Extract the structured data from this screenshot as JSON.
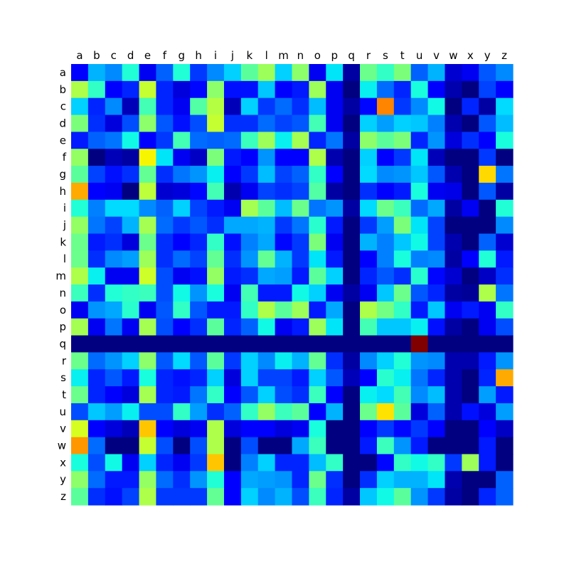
{
  "chart_data": {
    "type": "heatmap",
    "colormap": "jet",
    "vmin": 0,
    "vmax": 1,
    "x_ticks": [
      "a",
      "b",
      "c",
      "d",
      "e",
      "f",
      "g",
      "h",
      "i",
      "j",
      "k",
      "l",
      "m",
      "n",
      "o",
      "p",
      "q",
      "r",
      "s",
      "t",
      "u",
      "v",
      "w",
      "x",
      "y",
      "z"
    ],
    "y_ticks": [
      "a",
      "b",
      "c",
      "d",
      "e",
      "f",
      "g",
      "h",
      "i",
      "j",
      "k",
      "l",
      "m",
      "n",
      "o",
      "p",
      "q",
      "r",
      "s",
      "t",
      "u",
      "v",
      "w",
      "x",
      "y",
      "z"
    ],
    "x_axis_position": "top",
    "grid": false,
    "values": [
      [
        0.11,
        0.3,
        0.26,
        0.39,
        0.1,
        0.22,
        0.39,
        0.18,
        0.26,
        0.33,
        0.46,
        0.54,
        0.33,
        0.52,
        0.1,
        0.35,
        0.03,
        0.48,
        0.41,
        0.5,
        0.22,
        0.3,
        0.07,
        0.1,
        0.21,
        0.26
      ],
      [
        0.56,
        0.41,
        0.11,
        0.16,
        0.59,
        0.16,
        0.08,
        0.13,
        0.52,
        0.14,
        0.14,
        0.32,
        0.11,
        0.15,
        0.54,
        0.1,
        0.0,
        0.36,
        0.23,
        0.16,
        0.38,
        0.11,
        0.04,
        0.0,
        0.19,
        0.11
      ],
      [
        0.33,
        0.16,
        0.26,
        0.05,
        0.43,
        0.16,
        0.1,
        0.45,
        0.57,
        0.05,
        0.33,
        0.18,
        0.23,
        0.17,
        0.31,
        0.1,
        0.03,
        0.13,
        0.77,
        0.18,
        0.26,
        0.37,
        0.0,
        0.16,
        0.03,
        0.34
      ],
      [
        0.5,
        0.17,
        0.08,
        0.2,
        0.52,
        0.21,
        0.14,
        0.2,
        0.59,
        0.17,
        0.17,
        0.23,
        0.19,
        0.21,
        0.43,
        0.1,
        0.0,
        0.33,
        0.28,
        0.33,
        0.32,
        0.25,
        0.04,
        0.0,
        0.21,
        0.31
      ],
      [
        0.15,
        0.22,
        0.24,
        0.37,
        0.11,
        0.18,
        0.43,
        0.23,
        0.22,
        0.23,
        0.42,
        0.54,
        0.36,
        0.55,
        0.16,
        0.24,
        0.03,
        0.52,
        0.46,
        0.5,
        0.16,
        0.27,
        0.08,
        0.17,
        0.11,
        0.38
      ],
      [
        0.53,
        0.0,
        0.05,
        0.03,
        0.65,
        0.35,
        0.1,
        0.06,
        0.5,
        0.15,
        0.11,
        0.27,
        0.11,
        0.12,
        0.56,
        0.04,
        0.0,
        0.33,
        0.11,
        0.18,
        0.35,
        0.05,
        0.0,
        0.0,
        0.18,
        0.0
      ],
      [
        0.46,
        0.19,
        0.14,
        0.17,
        0.47,
        0.17,
        0.24,
        0.27,
        0.36,
        0.11,
        0.18,
        0.31,
        0.19,
        0.22,
        0.41,
        0.11,
        0.0,
        0.34,
        0.26,
        0.27,
        0.32,
        0.21,
        0.04,
        0.0,
        0.68,
        0.24
      ],
      [
        0.73,
        0.11,
        0.1,
        0.0,
        0.58,
        0.07,
        0.08,
        0.13,
        0.43,
        0.04,
        0.1,
        0.19,
        0.17,
        0.19,
        0.45,
        0.03,
        0.0,
        0.17,
        0.11,
        0.15,
        0.38,
        0.1,
        0.09,
        0.0,
        0.21,
        0.03
      ],
      [
        0.39,
        0.25,
        0.34,
        0.34,
        0.26,
        0.22,
        0.33,
        0.19,
        0.15,
        0.1,
        0.55,
        0.46,
        0.31,
        0.48,
        0.24,
        0.27,
        0.03,
        0.34,
        0.48,
        0.42,
        0.23,
        0.29,
        0.03,
        0.1,
        0.0,
        0.39
      ],
      [
        0.53,
        0.24,
        0.19,
        0.3,
        0.55,
        0.23,
        0.18,
        0.21,
        0.17,
        0.29,
        0.29,
        0.3,
        0.18,
        0.24,
        0.4,
        0.15,
        0.0,
        0.18,
        0.28,
        0.5,
        0.35,
        0.19,
        0.0,
        0.0,
        0.0,
        0.26
      ],
      [
        0.48,
        0.15,
        0.17,
        0.08,
        0.48,
        0.17,
        0.11,
        0.16,
        0.41,
        0.14,
        0.25,
        0.29,
        0.13,
        0.18,
        0.5,
        0.1,
        0.0,
        0.3,
        0.25,
        0.32,
        0.37,
        0.19,
        0.04,
        0.0,
        0.22,
        0.07
      ],
      [
        0.48,
        0.17,
        0.26,
        0.28,
        0.54,
        0.17,
        0.23,
        0.19,
        0.47,
        0.17,
        0.27,
        0.47,
        0.3,
        0.18,
        0.35,
        0.15,
        0.0,
        0.11,
        0.25,
        0.38,
        0.25,
        0.26,
        0.03,
        0.11,
        0.39,
        0.15
      ],
      [
        0.56,
        0.36,
        0.1,
        0.1,
        0.6,
        0.2,
        0.1,
        0.14,
        0.53,
        0.15,
        0.17,
        0.29,
        0.28,
        0.15,
        0.46,
        0.33,
        0.0,
        0.16,
        0.21,
        0.17,
        0.4,
        0.13,
        0.07,
        0.0,
        0.06,
        0.17
      ],
      [
        0.42,
        0.17,
        0.39,
        0.41,
        0.42,
        0.2,
        0.37,
        0.27,
        0.38,
        0.1,
        0.43,
        0.15,
        0.15,
        0.37,
        0.33,
        0.1,
        0.03,
        0.1,
        0.32,
        0.48,
        0.21,
        0.16,
        0.03,
        0.02,
        0.56,
        0.24
      ],
      [
        0.1,
        0.27,
        0.29,
        0.4,
        0.1,
        0.21,
        0.41,
        0.21,
        0.15,
        0.15,
        0.41,
        0.56,
        0.46,
        0.54,
        0.15,
        0.29,
        0.0,
        0.56,
        0.49,
        0.41,
        0.15,
        0.32,
        0.1,
        0.15,
        0.1,
        0.41
      ],
      [
        0.55,
        0.1,
        0.24,
        0.1,
        0.55,
        0.2,
        0.11,
        0.17,
        0.46,
        0.16,
        0.22,
        0.37,
        0.1,
        0.15,
        0.54,
        0.35,
        0.0,
        0.43,
        0.32,
        0.32,
        0.36,
        0.14,
        0.03,
        0.0,
        0.1,
        0.2
      ],
      [
        0.0,
        0.0,
        0.0,
        0.0,
        0.0,
        0.0,
        0.0,
        0.0,
        0.0,
        0.0,
        0.0,
        0.0,
        0.0,
        0.0,
        0.0,
        0.0,
        0.0,
        0.0,
        0.0,
        0.0,
        1.0,
        0.0,
        0.0,
        0.0,
        0.0,
        0.0
      ],
      [
        0.48,
        0.23,
        0.27,
        0.33,
        0.52,
        0.21,
        0.34,
        0.21,
        0.46,
        0.18,
        0.33,
        0.26,
        0.36,
        0.3,
        0.47,
        0.17,
        0.03,
        0.26,
        0.33,
        0.39,
        0.27,
        0.26,
        0.04,
        0.04,
        0.15,
        0.27
      ],
      [
        0.36,
        0.16,
        0.21,
        0.15,
        0.38,
        0.16,
        0.14,
        0.16,
        0.33,
        0.08,
        0.33,
        0.19,
        0.19,
        0.15,
        0.33,
        0.21,
        0.05,
        0.11,
        0.4,
        0.36,
        0.24,
        0.16,
        0.04,
        0.0,
        0.16,
        0.73
      ],
      [
        0.48,
        0.16,
        0.11,
        0.08,
        0.55,
        0.16,
        0.15,
        0.24,
        0.41,
        0.11,
        0.21,
        0.33,
        0.2,
        0.17,
        0.42,
        0.11,
        0.0,
        0.36,
        0.34,
        0.43,
        0.26,
        0.31,
        0.04,
        0.0,
        0.28,
        0.15
      ],
      [
        0.2,
        0.32,
        0.28,
        0.36,
        0.2,
        0.2,
        0.41,
        0.28,
        0.17,
        0.22,
        0.41,
        0.53,
        0.42,
        0.46,
        0.11,
        0.3,
        0.0,
        0.48,
        0.67,
        0.46,
        0.08,
        0.22,
        0.04,
        0.14,
        0.08,
        0.28
      ],
      [
        0.61,
        0.11,
        0.08,
        0.05,
        0.7,
        0.11,
        0.08,
        0.1,
        0.56,
        0.08,
        0.11,
        0.11,
        0.08,
        0.1,
        0.38,
        0.0,
        0.0,
        0.11,
        0.18,
        0.13,
        0.18,
        0.11,
        0.0,
        0.0,
        0.11,
        0.06
      ],
      [
        0.75,
        0.23,
        0.0,
        0.0,
        0.59,
        0.2,
        0.0,
        0.2,
        0.56,
        0.0,
        0.2,
        0.0,
        0.0,
        0.29,
        0.42,
        0.0,
        0.0,
        0.15,
        0.42,
        0.27,
        0.15,
        0.0,
        0.0,
        0.0,
        0.15,
        0.0
      ],
      [
        0.38,
        0.2,
        0.37,
        0.1,
        0.33,
        0.16,
        0.1,
        0.18,
        0.7,
        0.0,
        0.25,
        0.33,
        0.16,
        0.16,
        0.31,
        0.41,
        0.0,
        0.0,
        0.13,
        0.41,
        0.37,
        0.41,
        0.18,
        0.54,
        0.15,
        0.0
      ],
      [
        0.52,
        0.23,
        0.15,
        0.15,
        0.53,
        0.23,
        0.17,
        0.27,
        0.39,
        0.11,
        0.29,
        0.28,
        0.27,
        0.16,
        0.48,
        0.17,
        0.0,
        0.17,
        0.33,
        0.3,
        0.3,
        0.35,
        0.04,
        0.0,
        0.0,
        0.22
      ],
      [
        0.46,
        0.17,
        0.14,
        0.19,
        0.56,
        0.18,
        0.18,
        0.18,
        0.47,
        0.11,
        0.33,
        0.26,
        0.3,
        0.2,
        0.42,
        0.16,
        0.03,
        0.32,
        0.37,
        0.46,
        0.27,
        0.18,
        0.03,
        0.0,
        0.16,
        0.22
      ]
    ]
  }
}
